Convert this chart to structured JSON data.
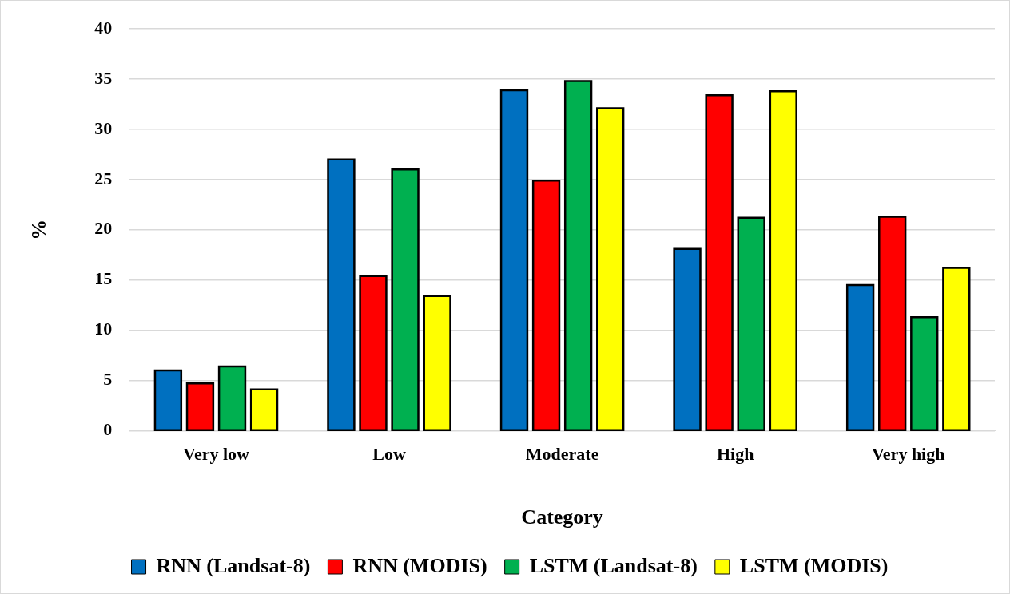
{
  "chart_data": {
    "type": "bar",
    "xlabel": "Category",
    "ylabel": "%",
    "categories": [
      "Very low",
      "Low",
      "Moderate",
      "High",
      "Very high"
    ],
    "series": [
      {
        "name": "RNN (Landsat-8)",
        "color": "#0070c0",
        "values": [
          6.0,
          27.0,
          33.9,
          18.1,
          14.5
        ]
      },
      {
        "name": "RNN (MODIS)",
        "color": "#ff0000",
        "values": [
          4.7,
          15.4,
          24.9,
          33.4,
          21.3
        ]
      },
      {
        "name": "LSTM (Landsat-8)",
        "color": "#00b050",
        "values": [
          6.4,
          26.0,
          34.8,
          21.2,
          11.3
        ]
      },
      {
        "name": "LSTM (MODIS)",
        "color": "#ffff00",
        "values": [
          4.1,
          13.4,
          32.1,
          33.8,
          16.2
        ]
      }
    ],
    "ylim": [
      0,
      40
    ],
    "yticks": [
      0,
      5,
      10,
      15,
      20,
      25,
      30,
      35,
      40
    ],
    "grid": "y",
    "legend": "bottom"
  }
}
